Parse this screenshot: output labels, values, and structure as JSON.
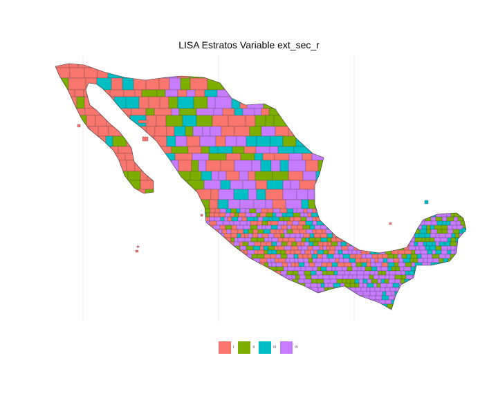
{
  "title": "LISA Estratos Variable ext_sec_r",
  "colors": {
    "I": "#F8766D",
    "II": "#7CAE00",
    "III": "#00BFC4",
    "IV": "#C77CFF",
    "border": "#333333",
    "grid": "#EBEBEB"
  },
  "legend": [
    {
      "label": "I",
      "color": "#F8766D"
    },
    {
      "label": "II",
      "color": "#7CAE00"
    },
    {
      "label": "III",
      "color": "#00BFC4"
    },
    {
      "label": "IV",
      "color": "#C77CFF"
    }
  ]
}
